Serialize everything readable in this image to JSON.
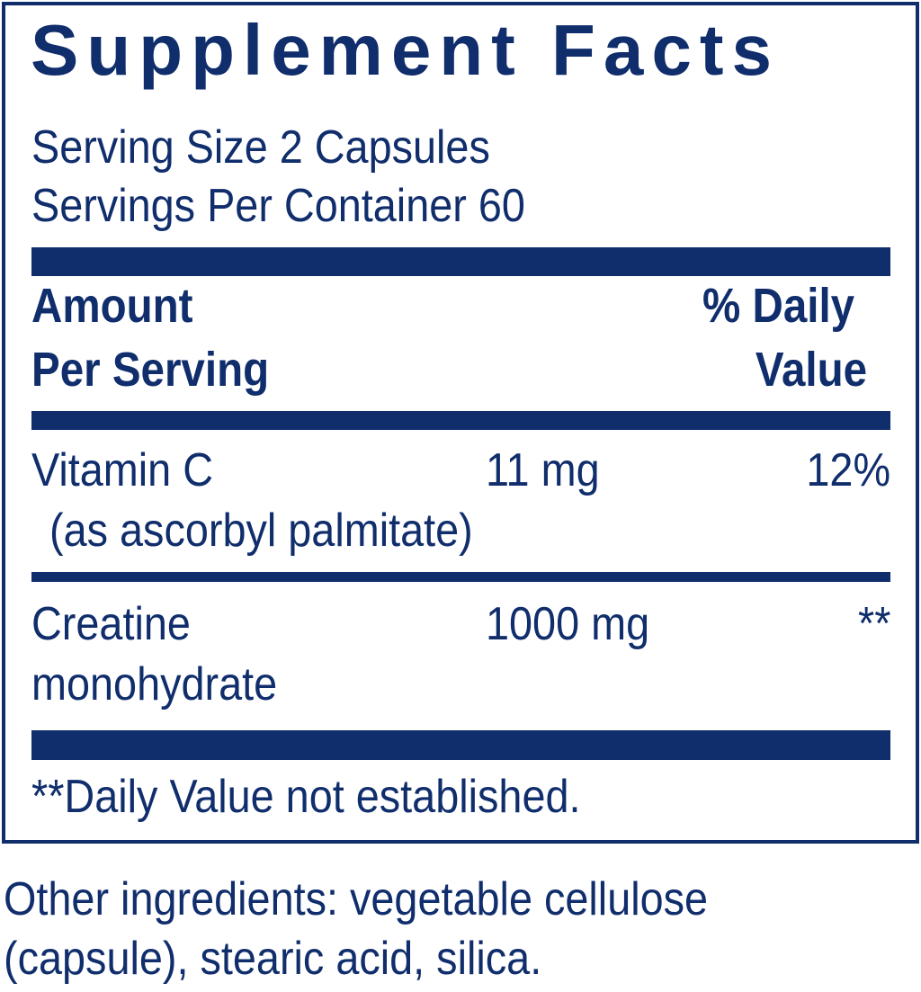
{
  "title": "Supplement Facts",
  "serving_size": "Serving Size 2 Capsules",
  "servings_per_container": "Servings Per Container 60",
  "header": {
    "amount_line1": "Amount",
    "amount_line2": "Per Serving",
    "dv_line1": "% Daily",
    "dv_line2": "Value"
  },
  "rows": [
    {
      "name": "Vitamin C",
      "sub": "(as ascorbyl palmitate)",
      "amount": "11 mg",
      "dv": "12%"
    },
    {
      "name": "Creatine",
      "sub": "monohydrate",
      "amount": "1000 mg",
      "dv": "**"
    }
  ],
  "footnote": "**Daily Value not established.",
  "other_ingredients_line1": "Other ingredients: vegetable cellulose",
  "other_ingredients_line2": "(capsule), stearic acid, silica.",
  "colors": {
    "ink": "#102d6c"
  }
}
